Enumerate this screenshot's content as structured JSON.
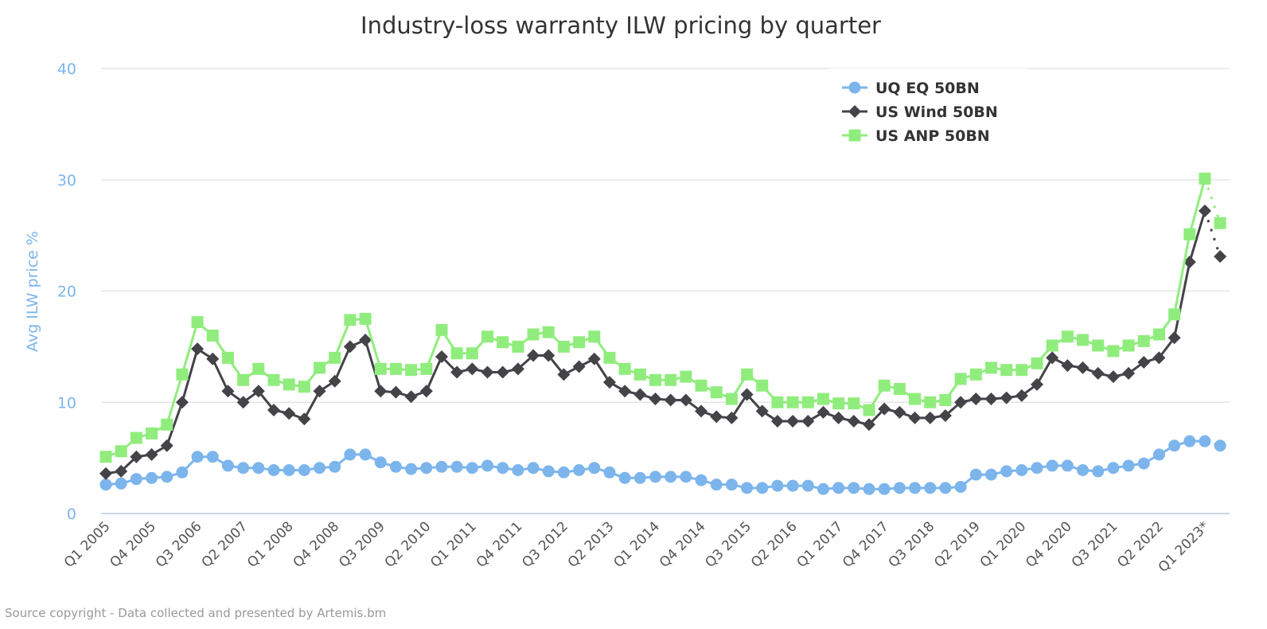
{
  "chart_data": {
    "type": "line",
    "title": "Industry-loss warranty ILW pricing by quarter",
    "ylabel": "Avg ILW price %",
    "xlabel": "",
    "ylim": [
      0,
      40
    ],
    "yticks": [
      "0",
      "10",
      "20",
      "30",
      "40"
    ],
    "grid": true,
    "legend_position": "top-right",
    "x_tick_labels": [
      "Q1 2005",
      "Q4 2005",
      "Q3 2006",
      "Q2 2007",
      "Q1 2008",
      "Q4 2008",
      "Q3 2009",
      "Q2 2010",
      "Q1 2011",
      "Q4 2011",
      "Q3 2012",
      "Q2 2013",
      "Q1 2014",
      "Q4 2014",
      "Q3 2015",
      "Q2 2016",
      "Q1 2017",
      "Q4 2017",
      "Q3 2018",
      "Q2 2019",
      "Q1 2020",
      "Q4 2020",
      "Q3 2021",
      "Q2 2022",
      "Q1 2023*"
    ],
    "series": [
      {
        "name": "UQ EQ 50BN",
        "color": "#7cb5ec",
        "marker": "circle",
        "values": [
          2.6,
          2.7,
          3.1,
          3.2,
          3.3,
          3.7,
          5.1,
          5.1,
          4.3,
          4.1,
          4.1,
          3.9,
          3.9,
          3.9,
          4.1,
          4.2,
          5.3,
          5.3,
          4.6,
          4.2,
          4.0,
          4.1,
          4.2,
          4.2,
          4.1,
          4.3,
          4.1,
          3.9,
          4.1,
          3.8,
          3.7,
          3.9,
          4.1,
          3.7,
          3.2,
          3.2,
          3.3,
          3.3,
          3.3,
          3.0,
          2.6,
          2.6,
          2.3,
          2.3,
          2.5,
          2.5,
          2.5,
          2.2,
          2.3,
          2.3,
          2.2,
          2.2,
          2.3,
          2.3,
          2.3,
          2.3,
          2.4,
          3.5,
          3.5,
          3.8,
          3.9,
          4.1,
          4.3,
          4.3,
          3.9,
          3.8,
          4.1,
          4.3,
          4.5,
          5.3,
          6.1,
          6.5,
          6.5,
          6.1
        ]
      },
      {
        "name": "US Wind 50BN",
        "color": "#434348",
        "marker": "diamond",
        "values": [
          3.6,
          3.8,
          5.1,
          5.3,
          6.1,
          10.0,
          14.8,
          13.9,
          11.0,
          10.0,
          11.0,
          9.3,
          9.0,
          8.5,
          11.0,
          11.9,
          15.0,
          15.6,
          11.0,
          10.9,
          10.5,
          11.0,
          14.1,
          12.7,
          13.0,
          12.7,
          12.7,
          13.0,
          14.2,
          14.2,
          12.5,
          13.2,
          13.9,
          11.8,
          11.0,
          10.7,
          10.3,
          10.2,
          10.2,
          9.2,
          8.7,
          8.6,
          10.7,
          9.2,
          8.3,
          8.3,
          8.3,
          9.1,
          8.6,
          8.3,
          8.0,
          9.4,
          9.1,
          8.6,
          8.6,
          8.8,
          10.0,
          10.3,
          10.3,
          10.4,
          10.6,
          11.6,
          14.0,
          13.3,
          13.1,
          12.6,
          12.3,
          12.6,
          13.6,
          14.0,
          15.8,
          22.6,
          27.2,
          23.1
        ]
      },
      {
        "name": "US ANP 50BN",
        "color": "#90ed7d",
        "marker": "square",
        "values": [
          5.1,
          5.6,
          6.8,
          7.2,
          8.0,
          12.5,
          17.2,
          16.0,
          14.0,
          12.0,
          13.0,
          12.0,
          11.6,
          11.4,
          13.1,
          14.0,
          17.4,
          17.5,
          13.0,
          13.0,
          12.9,
          13.0,
          16.5,
          14.4,
          14.4,
          15.9,
          15.4,
          15.0,
          16.1,
          16.3,
          15.0,
          15.4,
          15.9,
          14.0,
          13.0,
          12.5,
          12.0,
          12.0,
          12.3,
          11.5,
          10.9,
          10.3,
          12.5,
          11.5,
          10.0,
          10.0,
          10.0,
          10.3,
          9.9,
          9.9,
          9.3,
          11.5,
          11.2,
          10.3,
          10.0,
          10.2,
          12.1,
          12.5,
          13.1,
          12.9,
          12.9,
          13.5,
          15.1,
          15.9,
          15.6,
          15.1,
          14.6,
          15.1,
          15.5,
          16.1,
          17.9,
          25.1,
          30.1,
          26.1
        ]
      }
    ]
  },
  "credits": "Source copyright - Data collected and presented by Artemis.bm"
}
